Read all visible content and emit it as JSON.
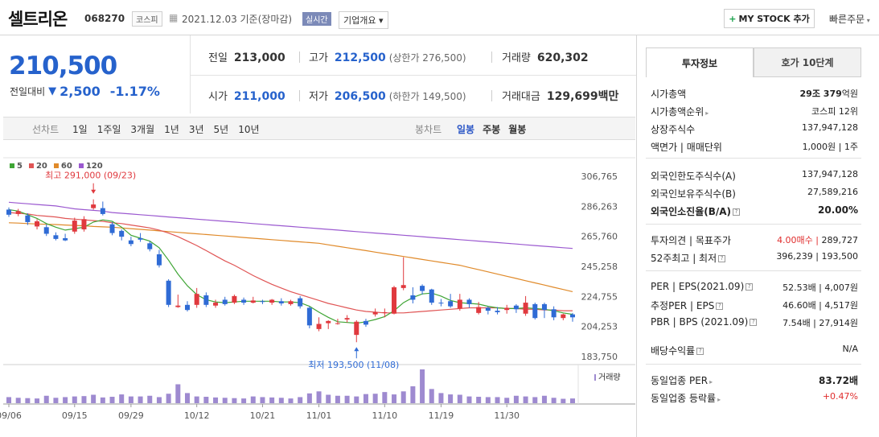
{
  "header": {
    "name": "셀트리온",
    "code": "068270",
    "market": "코스피",
    "date": "2021.12.03  기준(장마감)",
    "realtime": "실시간",
    "corp_overview": "기업개요 ▾",
    "mystock": "MY STOCK 추가",
    "quick_order": "빠른주문"
  },
  "price": {
    "current": "210,500",
    "change_label": "전일대비",
    "change": "2,500",
    "change_pct": "-1.17%"
  },
  "quote": {
    "prev_label": "전일",
    "prev": "213,000",
    "high_label": "고가",
    "high": "212,500",
    "upper_limit": "(상한가 276,500)",
    "volume_label": "거래량",
    "volume": "620,302",
    "open_label": "시가",
    "open": "211,000",
    "low_label": "저가",
    "low": "206,500",
    "lower_limit": "(하한가 149,500)",
    "amount_label": "거래대금",
    "amount": "129,699",
    "amount_unit": "백만"
  },
  "chart_options": {
    "line_label": "선차트",
    "periods": [
      "1일",
      "1주일",
      "3개월",
      "1년",
      "3년",
      "5년",
      "10년"
    ],
    "candle_label": "봉차트",
    "candle_types": [
      "일봉",
      "주봉",
      "월봉"
    ],
    "active_candle": "일봉"
  },
  "chart_data": {
    "type": "candlestick",
    "legend": [
      {
        "name": "5",
        "color": "#3fa535"
      },
      {
        "name": "20",
        "color": "#e05555"
      },
      {
        "name": "60",
        "color": "#e08a2a"
      },
      {
        "name": "120",
        "color": "#9b59d0"
      }
    ],
    "y_ticks": [
      306765,
      286263,
      265760,
      245258,
      224755,
      204253,
      183750
    ],
    "y_tick_labels": [
      "306,765",
      "286,263",
      "265,760",
      "245,258",
      "224,755",
      "204,253",
      "183,750"
    ],
    "x_tick_labels": [
      "09/06",
      "09/15",
      "09/29",
      "10/12",
      "10/21",
      "11/01",
      "11/10",
      "11/19",
      "11/30"
    ],
    "x_tick_index": [
      0,
      7,
      13,
      20,
      27,
      33,
      40,
      46,
      53
    ],
    "ylim": [
      183750,
      306765
    ],
    "high_note": "최고 291,000 (09/23)",
    "high_index": 9,
    "high_value": 291000,
    "low_note": "최저 193,500 (11/08)",
    "low_index": 37,
    "low_value": 193500,
    "volume_label": "거래량",
    "candles": [
      [
        284000,
        280500,
        285500,
        279000
      ],
      [
        281000,
        283000,
        284500,
        279500
      ],
      [
        280000,
        275500,
        281500,
        273500
      ],
      [
        272500,
        276000,
        277500,
        270500
      ],
      [
        272000,
        267500,
        274000,
        266000
      ],
      [
        266500,
        264000,
        268500,
        263000
      ],
      [
        264500,
        263000,
        267500,
        262500
      ],
      [
        269000,
        276500,
        278500,
        267500
      ],
      [
        270500,
        277500,
        279500,
        269000
      ],
      [
        285000,
        287500,
        291000,
        284000
      ],
      [
        285000,
        281000,
        289500,
        280000
      ],
      [
        274000,
        268000,
        275500,
        266500
      ],
      [
        269500,
        265500,
        270500,
        263000
      ],
      [
        263000,
        260500,
        265500,
        259000
      ],
      [
        264500,
        263500,
        268000,
        262000
      ],
      [
        261000,
        257000,
        262500,
        255500
      ],
      [
        253500,
        246000,
        256500,
        244500
      ],
      [
        235500,
        219000,
        236500,
        217500
      ],
      [
        217500,
        218500,
        226000,
        217000
      ],
      [
        219000,
        215500,
        221500,
        214500
      ],
      [
        219000,
        226500,
        230500,
        217000
      ],
      [
        225500,
        219000,
        227500,
        217500
      ],
      [
        218500,
        220500,
        222500,
        217000
      ],
      [
        222500,
        219500,
        224500,
        218500
      ],
      [
        220500,
        225000,
        226000,
        219500
      ],
      [
        222500,
        220500,
        224000,
        219000
      ],
      [
        220500,
        222000,
        224500,
        220000
      ],
      [
        221500,
        221000,
        222500,
        219500
      ],
      [
        220500,
        222500,
        223000,
        219000
      ],
      [
        221500,
        220000,
        223500,
        218500
      ],
      [
        219500,
        221500,
        222500,
        218500
      ],
      [
        223500,
        218000,
        225000,
        216500
      ],
      [
        217000,
        205000,
        218000,
        203000
      ],
      [
        202500,
        206000,
        210500,
        201000
      ],
      [
        206500,
        208000,
        208500,
        202500
      ],
      [
        206500,
        206500,
        209500,
        205500
      ],
      [
        209000,
        210000,
        212000,
        207000
      ],
      [
        198500,
        207500,
        208500,
        193500
      ],
      [
        208000,
        205500,
        209500,
        204000
      ],
      [
        212500,
        214000,
        216500,
        211000
      ],
      [
        213500,
        214000,
        216500,
        210500
      ],
      [
        213000,
        231000,
        232000,
        212500
      ],
      [
        230500,
        232500,
        251500,
        229000
      ],
      [
        225500,
        222500,
        231000,
        220000
      ],
      [
        232000,
        228500,
        233000,
        226000
      ],
      [
        229500,
        220500,
        230000,
        219000
      ],
      [
        220500,
        220000,
        223000,
        218000
      ],
      [
        221500,
        218000,
        226500,
        217000
      ],
      [
        216500,
        222500,
        226500,
        215000
      ],
      [
        222500,
        219500,
        223500,
        217000
      ],
      [
        213500,
        217500,
        221000,
        212500
      ],
      [
        217000,
        215000,
        218000,
        212500
      ],
      [
        215000,
        214000,
        217500,
        212500
      ],
      [
        215500,
        217000,
        219000,
        213000
      ],
      [
        218500,
        216000,
        219500,
        213500
      ],
      [
        213000,
        220500,
        225000,
        211500
      ],
      [
        219500,
        210000,
        220500,
        209000
      ],
      [
        219500,
        215500,
        220500,
        210000
      ],
      [
        216000,
        210500,
        218000,
        208500
      ],
      [
        210000,
        212500,
        213000,
        208500
      ],
      [
        212500,
        210500,
        213500,
        207500
      ]
    ],
    "volumes": [
      0.18,
      0.16,
      0.15,
      0.14,
      0.22,
      0.16,
      0.18,
      0.2,
      0.21,
      0.25,
      0.17,
      0.19,
      0.26,
      0.2,
      0.2,
      0.22,
      0.18,
      0.28,
      0.56,
      0.3,
      0.2,
      0.19,
      0.17,
      0.16,
      0.15,
      0.14,
      0.2,
      0.18,
      0.17,
      0.16,
      0.14,
      0.18,
      0.29,
      0.35,
      0.25,
      0.22,
      0.22,
      0.2,
      0.27,
      0.28,
      0.33,
      0.26,
      0.35,
      0.5,
      1.0,
      0.42,
      0.3,
      0.26,
      0.25,
      0.2,
      0.19,
      0.18,
      0.18,
      0.16,
      0.22,
      0.2,
      0.18,
      0.22,
      0.16,
      0.13,
      0.14
    ],
    "ma": {
      "5": [
        284000,
        283000,
        280500,
        278000,
        274500,
        272000,
        270000,
        271000,
        272000,
        275500,
        277000,
        276000,
        272000,
        266500,
        264500,
        262500,
        258000,
        249500,
        240000,
        232000,
        226000,
        222500,
        221000,
        220500,
        221000,
        221500,
        221500,
        221500,
        221500,
        221000,
        221000,
        220500,
        218000,
        214000,
        210500,
        207500,
        207000,
        206500,
        207500,
        209000,
        211000,
        215000,
        220500,
        224000,
        226500,
        227000,
        225000,
        222000,
        220500,
        220000,
        219500,
        218000,
        217000,
        216500,
        216500,
        217000,
        216500,
        216000,
        215000,
        213500,
        212500
      ],
      "20": [
        282000,
        281500,
        281000,
        280000,
        279500,
        279000,
        278000,
        277500,
        277000,
        276500,
        276000,
        275000,
        274500,
        273500,
        272500,
        271500,
        270000,
        268000,
        265500,
        262500,
        259500,
        256000,
        252500,
        249000,
        246000,
        242500,
        239000,
        236000,
        233000,
        230500,
        228000,
        226000,
        224000,
        222000,
        220000,
        218500,
        217000,
        215500,
        214500,
        214000,
        213500,
        213500,
        213500,
        214000,
        214500,
        215000,
        215500,
        216000,
        216500,
        217000,
        217000,
        217000,
        217000,
        216500,
        216500,
        216000,
        216000,
        215500,
        215500,
        215000,
        215000
      ],
      "60": [
        275000,
        274800,
        274500,
        274200,
        274000,
        273800,
        273500,
        273200,
        273000,
        272500,
        272200,
        272000,
        271500,
        271000,
        270500,
        270000,
        269500,
        269000,
        268500,
        268000,
        267500,
        267000,
        266500,
        266000,
        265500,
        265000,
        264500,
        264000,
        263500,
        263000,
        262500,
        262000,
        261500,
        261000,
        260000,
        259000,
        258000,
        257000,
        256000,
        255000,
        254000,
        253000,
        252000,
        251000,
        250000,
        249000,
        248000,
        247000,
        246000,
        244500,
        243000,
        241500,
        240000,
        238500,
        237000,
        235500,
        234000,
        232500,
        231000,
        229500,
        228000
      ],
      "120": [
        289000,
        288500,
        288000,
        287500,
        287000,
        286500,
        285500,
        284500,
        284000,
        283500,
        283000,
        282000,
        281500,
        281000,
        280500,
        280000,
        279500,
        279000,
        278500,
        278000,
        277500,
        277000,
        276500,
        276000,
        275500,
        275000,
        274500,
        274000,
        273500,
        273000,
        272500,
        272000,
        271500,
        271000,
        270500,
        270000,
        269500,
        269000,
        268500,
        268000,
        267500,
        267000,
        266500,
        266000,
        265500,
        265000,
        264500,
        264000,
        263500,
        263000,
        262500,
        262000,
        261500,
        261000,
        260500,
        260000,
        259500,
        259000,
        258500,
        258000,
        257500
      ]
    }
  },
  "right_panel": {
    "tab_active": "투자정보",
    "tab_other": "호가 10단계",
    "rows1": [
      {
        "k": "시가총액",
        "v_bold": "29조 379",
        "v": "억원"
      },
      {
        "k": "시가총액순위",
        "v": "코스피 12위"
      },
      {
        "k": "상장주식수",
        "v": "137,947,128"
      },
      {
        "k": "액면가 | 매매단위",
        "v": "1,000원 | 1주"
      }
    ],
    "rows2": [
      {
        "k": "외국인한도주식수(A)",
        "v": "137,947,128"
      },
      {
        "k": "외국인보유주식수(B)",
        "v": "27,589,216"
      },
      {
        "k": "외국인소진율(B/A)",
        "v": "20.00%"
      }
    ],
    "rows3": [
      {
        "k": "투자의견 | 목표주가",
        "v_red": "4.00매수",
        "v": "289,727"
      },
      {
        "k": "52주최고 | 최저",
        "v": "396,239 | 193,500"
      }
    ],
    "rows4": [
      {
        "k": "PER | EPS(2021.09)",
        "v": "52.53배 | 4,007원"
      },
      {
        "k": "추정PER | EPS",
        "v": "46.60배 | 4,517원"
      },
      {
        "k": "PBR | BPS (2021.09)",
        "v": "7.54배 | 27,914원"
      },
      {
        "k": "배당수익률",
        "v": "N/A"
      }
    ],
    "rows5": [
      {
        "k": "동일업종 PER",
        "v": "83.72배"
      },
      {
        "k": "동일업종 등락률",
        "v": "+0.47%"
      }
    ]
  }
}
